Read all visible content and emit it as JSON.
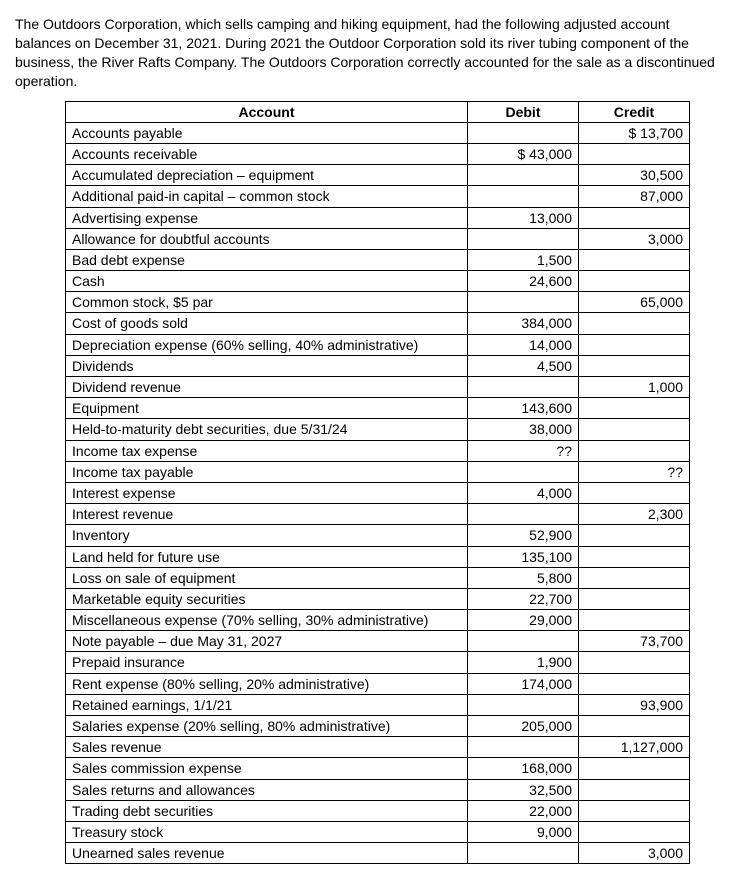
{
  "intro": "The Outdoors Corporation, which sells camping and hiking equipment, had the following adjusted account balances on December 31, 2021. During 2021 the Outdoor Corporation sold its river tubing component of the business, the River Rafts Company. The Outdoors Corporation correctly accounted for the sale as a discontinued operation.",
  "columns": [
    "Account",
    "Debit",
    "Credit"
  ],
  "rows": [
    {
      "a": "Accounts payable",
      "d": "",
      "c": "$ 13,700"
    },
    {
      "a": "Accounts receivable",
      "d": "$ 43,000",
      "c": ""
    },
    {
      "a": "Accumulated depreciation – equipment",
      "d": "",
      "c": "30,500"
    },
    {
      "a": "Additional paid-in capital – common stock",
      "d": "",
      "c": "87,000"
    },
    {
      "a": "Advertising expense",
      "d": "13,000",
      "c": ""
    },
    {
      "a": "Allowance for doubtful accounts",
      "d": "",
      "c": "3,000"
    },
    {
      "a": "Bad debt expense",
      "d": "1,500",
      "c": ""
    },
    {
      "a": "Cash",
      "d": "24,600",
      "c": ""
    },
    {
      "a": "Common stock, $5 par",
      "d": "",
      "c": "65,000"
    },
    {
      "a": "Cost of goods sold",
      "d": "384,000",
      "c": ""
    },
    {
      "a": "Depreciation expense (60% selling, 40% administrative)",
      "d": "14,000",
      "c": ""
    },
    {
      "a": "Dividends",
      "d": "4,500",
      "c": ""
    },
    {
      "a": "Dividend revenue",
      "d": "",
      "c": "1,000"
    },
    {
      "a": "Equipment",
      "d": "143,600",
      "c": ""
    },
    {
      "a": "Held-to-maturity debt securities, due 5/31/24",
      "d": "38,000",
      "c": ""
    },
    {
      "a": "Income tax expense",
      "d": "??",
      "c": ""
    },
    {
      "a": "Income tax payable",
      "d": "",
      "c": "??"
    },
    {
      "a": "Interest expense",
      "d": "4,000",
      "c": ""
    },
    {
      "a": "Interest revenue",
      "d": "",
      "c": "2,300"
    },
    {
      "a": "Inventory",
      "d": "52,900",
      "c": ""
    },
    {
      "a": "Land held for future use",
      "d": "135,100",
      "c": ""
    },
    {
      "a": "Loss on sale of equipment",
      "d": "5,800",
      "c": ""
    },
    {
      "a": "Marketable equity securities",
      "d": "22,700",
      "c": ""
    },
    {
      "a": "Miscellaneous expense (70% selling, 30% administrative)",
      "d": "29,000",
      "c": ""
    },
    {
      "a": "Note payable – due May 31, 2027",
      "d": "",
      "c": "73,700"
    },
    {
      "a": "Prepaid insurance",
      "d": "1,900",
      "c": ""
    },
    {
      "a": "Rent expense (80% selling, 20% administrative)",
      "d": "174,000",
      "c": ""
    },
    {
      "a": "Retained earnings, 1/1/21",
      "d": "",
      "c": "93,900"
    },
    {
      "a": "Salaries expense (20% selling, 80% administrative)",
      "d": "205,000",
      "c": ""
    },
    {
      "a": "Sales revenue",
      "d": "",
      "c": "1,127,000"
    },
    {
      "a": "Sales commission expense",
      "d": "168,000",
      "c": ""
    },
    {
      "a": "Sales returns and allowances",
      "d": "32,500",
      "c": ""
    },
    {
      "a": "Trading debt securities",
      "d": "22,000",
      "c": ""
    },
    {
      "a": "Treasury stock",
      "d": "9,000",
      "c": ""
    },
    {
      "a": "Unearned sales revenue",
      "d": "",
      "c": "3,000"
    }
  ]
}
